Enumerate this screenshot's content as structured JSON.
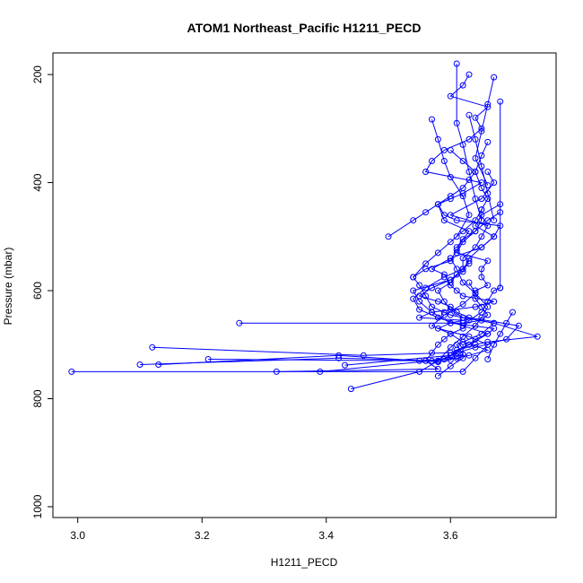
{
  "chart_data": {
    "type": "scatter",
    "title": "ATOM1 Northeast_Pacific H1211_PECD",
    "xlabel": "H1211_PECD",
    "ylabel": "Pressure (mbar)",
    "xlim": [
      2.96,
      3.77
    ],
    "ylim": [
      1020,
      160
    ],
    "y_inverted": true,
    "x_ticks": [
      3.0,
      3.2,
      3.4,
      3.6
    ],
    "x_tick_labels": [
      "3.0",
      "3.2",
      "3.4",
      "3.6"
    ],
    "y_ticks": [
      200,
      400,
      600,
      800,
      1000
    ],
    "y_tick_labels": [
      "200",
      "400",
      "600",
      "800",
      "1000"
    ],
    "grid": false,
    "legend": "none",
    "color": "#0000ff",
    "marker": "open-circle",
    "connected": true,
    "series": [
      {
        "x": [
          2.99,
          3.62,
          3.64,
          3.66,
          3.63,
          3.58,
          3.6,
          3.62,
          3.55,
          3.57,
          3.64,
          3.67,
          3.62,
          3.61,
          3.6,
          3.59,
          3.57,
          3.6,
          3.65,
          3.67,
          3.68,
          3.61,
          3.59,
          3.58,
          3.62,
          3.65,
          3.56,
          3.57,
          3.59,
          3.63,
          3.65,
          3.64,
          3.66,
          3.6,
          3.62,
          3.63
        ],
        "y": [
          750,
          750,
          725,
          700,
          685,
          670,
          660,
          655,
          650,
          640,
          630,
          620,
          610,
          600,
          590,
          570,
          560,
          540,
          520,
          500,
          480,
          470,
          460,
          440,
          420,
          400,
          380,
          360,
          340,
          320,
          300,
          280,
          260,
          240,
          220,
          200
        ]
      },
      {
        "x": [
          3.1,
          3.42,
          3.58,
          3.6,
          3.61,
          3.63,
          3.64,
          3.66,
          3.67,
          3.6,
          3.57,
          3.55,
          3.54,
          3.6,
          3.62,
          3.62,
          3.64,
          3.65,
          3.66,
          3.6,
          3.65,
          3.67,
          3.66
        ],
        "y": [
          737,
          725,
          730,
          720,
          710,
          700,
          690,
          680,
          670,
          660,
          640,
          620,
          600,
          580,
          560,
          540,
          520,
          500,
          480,
          460,
          430,
          400,
          380
        ]
      },
      {
        "x": [
          3.13,
          3.42,
          3.55,
          3.59,
          3.61,
          3.64,
          3.69,
          3.71,
          3.63,
          3.61,
          3.6,
          3.58,
          3.55,
          3.57,
          3.6,
          3.62,
          3.63,
          3.65,
          3.67,
          3.64,
          3.65,
          3.68
        ],
        "y": [
          737,
          720,
          730,
          727,
          715,
          705,
          690,
          665,
          650,
          640,
          630,
          620,
          610,
          595,
          580,
          565,
          540,
          520,
          500,
          480,
          460,
          440
        ]
      },
      {
        "x": [
          3.12,
          3.46,
          3.6,
          3.64,
          3.66,
          3.74,
          3.67,
          3.62,
          3.6,
          3.59,
          3.57,
          3.56,
          3.55,
          3.54,
          3.56,
          3.6,
          3.61,
          3.62,
          3.64,
          3.66,
          3.68
        ],
        "y": [
          705,
          720,
          715,
          700,
          695,
          685,
          660,
          650,
          645,
          640,
          630,
          610,
          590,
          575,
          560,
          545,
          525,
          505,
          490,
          470,
          455
        ]
      },
      {
        "x": [
          3.21,
          3.56,
          3.58,
          3.6,
          3.61,
          3.62,
          3.61,
          3.65,
          3.67,
          3.62,
          3.6,
          3.59,
          3.58,
          3.6,
          3.61,
          3.63
        ],
        "y": [
          727,
          730,
          732,
          728,
          722,
          718,
          700,
          680,
          660,
          650,
          635,
          620,
          600,
          585,
          570,
          550
        ]
      },
      {
        "x": [
          3.26,
          3.62,
          3.65,
          3.66,
          3.65,
          3.64,
          3.64,
          3.66,
          3.65,
          3.65,
          3.66,
          3.61,
          3.62,
          3.64,
          3.65,
          3.65,
          3.66,
          3.65,
          3.64,
          3.65,
          3.66
        ],
        "y": [
          660,
          660,
          655,
          645,
          630,
          615,
          600,
          590,
          575,
          560,
          545,
          530,
          510,
          490,
          470,
          450,
          430,
          410,
          380,
          350,
          325
        ]
      },
      {
        "x": [
          3.32,
          3.58,
          3.56,
          3.57,
          3.58,
          3.59,
          3.6,
          3.62,
          3.63,
          3.65,
          3.66,
          3.67,
          3.68
        ],
        "y": [
          750,
          745,
          730,
          715,
          700,
          690,
          680,
          670,
          655,
          640,
          620,
          600,
          595
        ]
      },
      {
        "x": [
          3.39,
          3.57,
          3.61,
          3.63,
          3.66,
          3.62,
          3.6,
          3.57,
          3.59,
          3.62,
          3.64,
          3.63
        ],
        "y": [
          750,
          730,
          725,
          720,
          710,
          695,
          680,
          665,
          645,
          625,
          605,
          585
        ]
      },
      {
        "x": [
          3.43,
          3.6,
          3.63,
          3.66,
          3.62,
          3.58,
          3.55,
          3.54,
          3.56,
          3.59,
          3.62,
          3.63
        ],
        "y": [
          738,
          720,
          700,
          680,
          665,
          650,
          635,
          615,
          595,
          575,
          560,
          545
        ]
      },
      {
        "x": [
          3.44,
          3.55,
          3.58,
          3.6,
          3.62,
          3.64,
          3.65,
          3.66,
          3.64,
          3.62,
          3.61,
          3.6
        ],
        "y": [
          782,
          750,
          730,
          705,
          685,
          665,
          650,
          630,
          605,
          585,
          560,
          540
        ]
      },
      {
        "x": [
          3.5,
          3.54,
          3.56,
          3.58,
          3.6,
          3.62,
          3.63,
          3.64,
          3.62,
          3.6
        ],
        "y": [
          500,
          470,
          455,
          440,
          425,
          410,
          395,
          380,
          360,
          340
        ]
      },
      {
        "x": [
          3.54,
          3.56,
          3.58,
          3.6,
          3.62,
          3.64,
          3.65
        ],
        "y": [
          575,
          550,
          530,
          510,
          490,
          470,
          450
        ]
      },
      {
        "x": [
          3.57,
          3.58,
          3.59,
          3.6,
          3.62,
          3.63,
          3.61
        ],
        "y": [
          283,
          320,
          360,
          390,
          425,
          460,
          500
        ]
      },
      {
        "x": [
          3.61,
          3.61,
          3.62,
          3.63,
          3.64,
          3.65
        ],
        "y": [
          180,
          290,
          330,
          380,
          430,
          470
        ]
      },
      {
        "x": [
          3.63,
          3.64,
          3.65,
          3.66,
          3.67
        ],
        "y": [
          275,
          320,
          370,
          420,
          470
        ]
      },
      {
        "x": [
          3.68,
          3.68
        ],
        "y": [
          250,
          595
        ]
      },
      {
        "x": [
          3.67,
          3.66,
          3.65,
          3.64,
          3.66
        ],
        "y": [
          205,
          255,
          305,
          355,
          405
        ]
      },
      {
        "x": [
          3.58,
          3.6,
          3.62,
          3.62
        ],
        "y": [
          758,
          740,
          725,
          700
        ]
      },
      {
        "x": [
          3.66,
          3.67,
          3.68,
          3.69,
          3.7
        ],
        "y": [
          727,
          700,
          680,
          660,
          640
        ]
      },
      {
        "x": [
          3.6,
          3.58,
          3.59,
          3.63,
          3.61
        ],
        "y": [
          430,
          440,
          470,
          490,
          520
        ]
      }
    ]
  }
}
